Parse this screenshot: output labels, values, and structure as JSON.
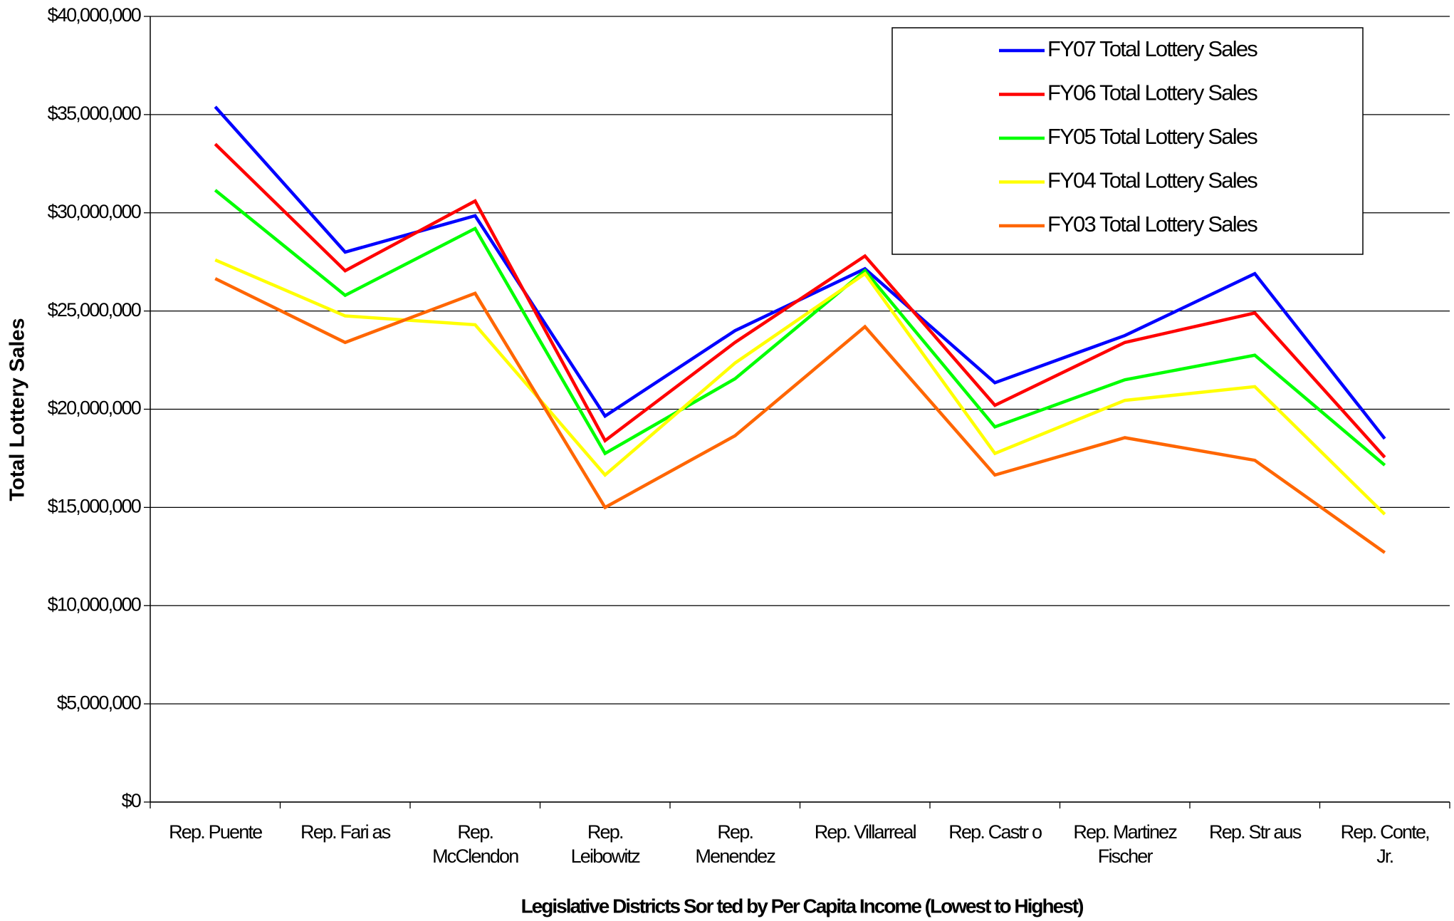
{
  "chart_data": {
    "type": "line",
    "y_label": "Total  Lottery Sales",
    "x_label": "Legislative Districts Sor ted by Per Capita Income (Lowest to Highest)",
    "categories": [
      "Rep. Puente",
      "Rep. Fari as",
      "Rep. McClendon",
      "Rep. Leibowitz",
      "Rep. Menendez",
      "Rep. Villarreal",
      "Rep. Castr o",
      "Rep. Martinez Fischer",
      "Rep. Str aus",
      "Rep. Conte, Jr."
    ],
    "series": [
      {
        "name": "FY07 Total Lottery Sales",
        "color": "#0000ff",
        "values": [
          35400000,
          28000000,
          29850000,
          19650000,
          24000000,
          27150000,
          21350000,
          23750000,
          26900000,
          18500000
        ]
      },
      {
        "name": "FY06 Total Lottery Sales",
        "color": "#ff0000",
        "values": [
          33500000,
          27050000,
          30600000,
          18400000,
          23400000,
          27800000,
          20200000,
          23400000,
          24900000,
          17550000
        ]
      },
      {
        "name": "FY05 Total Lottery Sales",
        "color": "#00ff00",
        "values": [
          31150000,
          25800000,
          29200000,
          17750000,
          21550000,
          27050000,
          19100000,
          21500000,
          22750000,
          17150000
        ]
      },
      {
        "name": "FY04 Total Lottery Sales",
        "color": "#ffff00",
        "values": [
          27600000,
          24750000,
          24300000,
          16650000,
          22350000,
          26900000,
          17750000,
          20450000,
          21150000,
          14650000
        ]
      },
      {
        "name": "FY03 Total Lottery Sales",
        "color": "#ff6600",
        "values": [
          26650000,
          23400000,
          25900000,
          15000000,
          18650000,
          24200000,
          16650000,
          18550000,
          17400000,
          12700000
        ]
      }
    ],
    "ylim": [
      0,
      40000000
    ],
    "yticks": [
      {
        "value": 0,
        "label": "$0"
      },
      {
        "value": 5000000,
        "label": "$5,000,000"
      },
      {
        "value": 10000000,
        "label": "$10,000,000"
      },
      {
        "value": 15000000,
        "label": "$15,000,000"
      },
      {
        "value": 20000000,
        "label": "$20,000,000"
      },
      {
        "value": 25000000,
        "label": "$25,000,000"
      },
      {
        "value": 30000000,
        "label": "$30,000,000"
      },
      {
        "value": 35000000,
        "label": "$35,000,000"
      },
      {
        "value": 40000000,
        "label": "$40,000,000"
      }
    ],
    "grid": true,
    "legend": "upper right"
  }
}
